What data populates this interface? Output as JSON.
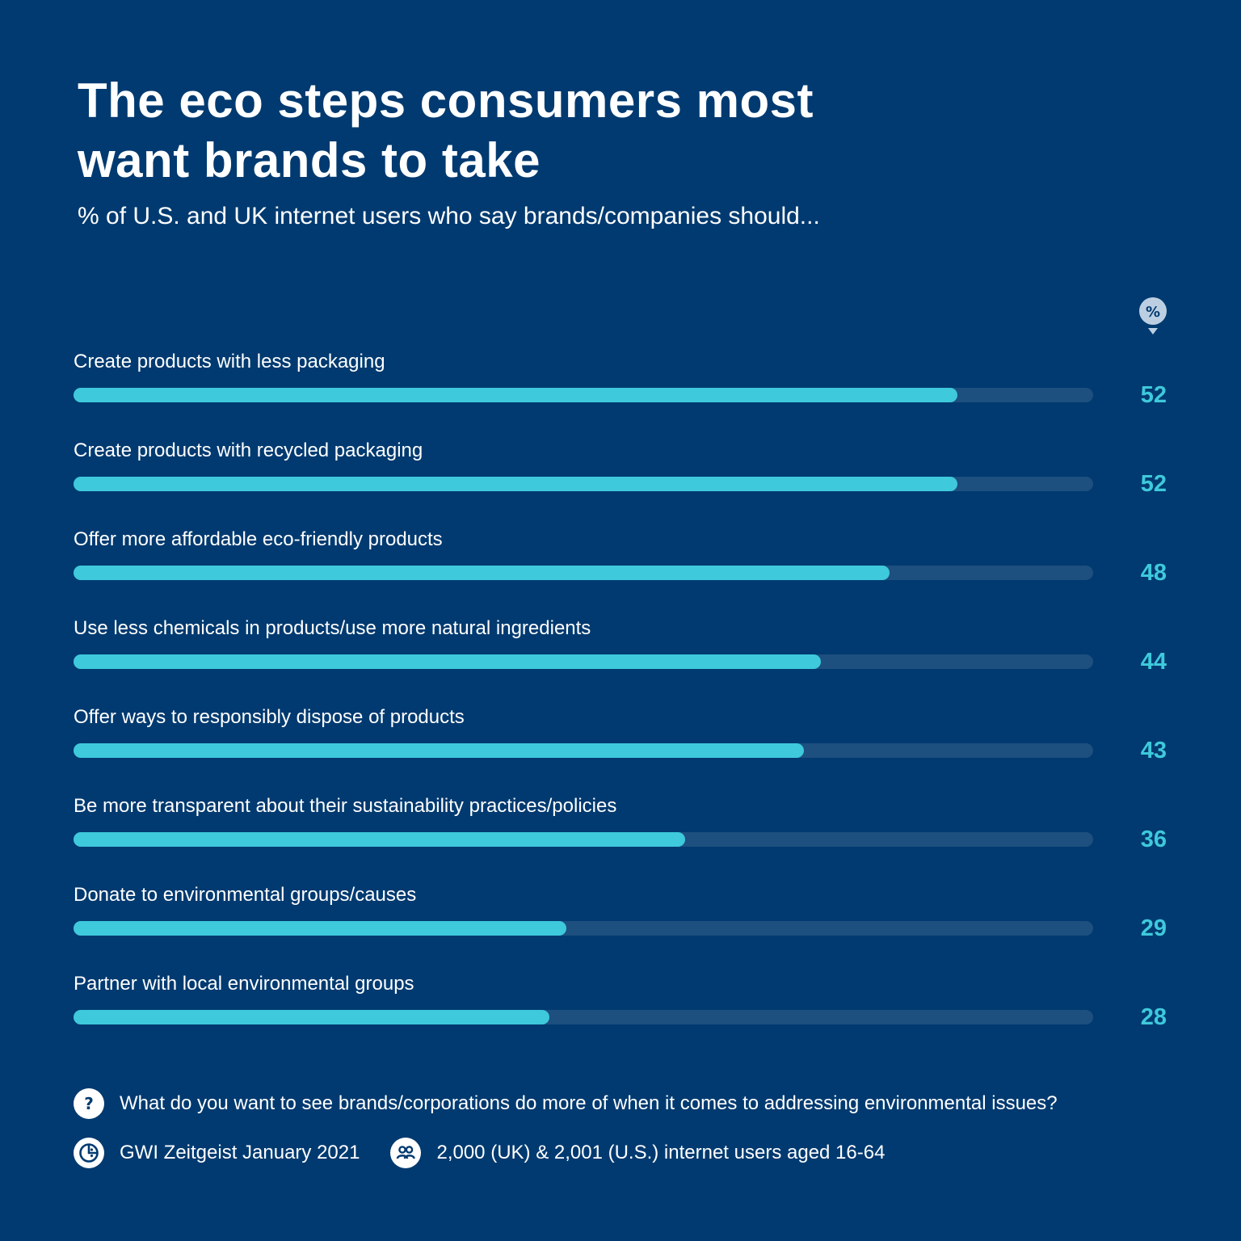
{
  "header": {
    "title_line1": "The eco steps consumers most",
    "title_line2": "want brands to take",
    "subtitle": "% of U.S. and UK internet users who say brands/companies should..."
  },
  "badge": {
    "label": "%",
    "icon": "percent-badge-icon"
  },
  "colors": {
    "background": "#003a70",
    "bar": "#3ec9dc",
    "track": "#1d4f7f",
    "text": "#ffffff"
  },
  "chart_data": {
    "type": "bar",
    "orientation": "horizontal",
    "title": "The eco steps consumers most want brands to take",
    "subtitle": "% of U.S. and UK internet users who say brands/companies should...",
    "categories": [
      "Create products with less packaging",
      "Create products with recycled packaging",
      "Offer more affordable eco-friendly products",
      "Use less chemicals in products/use more natural ingredients",
      "Offer ways to responsibly dispose of products",
      "Be more transparent about their sustainability practices/policies",
      "Donate to environmental groups/causes",
      "Partner with local environmental groups"
    ],
    "values": [
      52,
      52,
      48,
      44,
      43,
      36,
      29,
      28
    ],
    "value_labels": [
      "52",
      "52",
      "48",
      "44",
      "43",
      "36",
      "29",
      "28"
    ],
    "xlim": [
      0,
      60
    ],
    "unit": "%",
    "grid": false,
    "legend": "none"
  },
  "footer": {
    "question_icon": "question-icon",
    "question_glyph": "?",
    "question": "What do you want to see brands/corporations do more of when it comes to addressing environmental issues?",
    "source_icon": "pie-chart-icon",
    "source": "GWI Zeitgeist January 2021",
    "sample_icon": "people-icon",
    "sample": "2,000 (UK) &  2,001 (U.S.) internet users aged 16-64"
  }
}
